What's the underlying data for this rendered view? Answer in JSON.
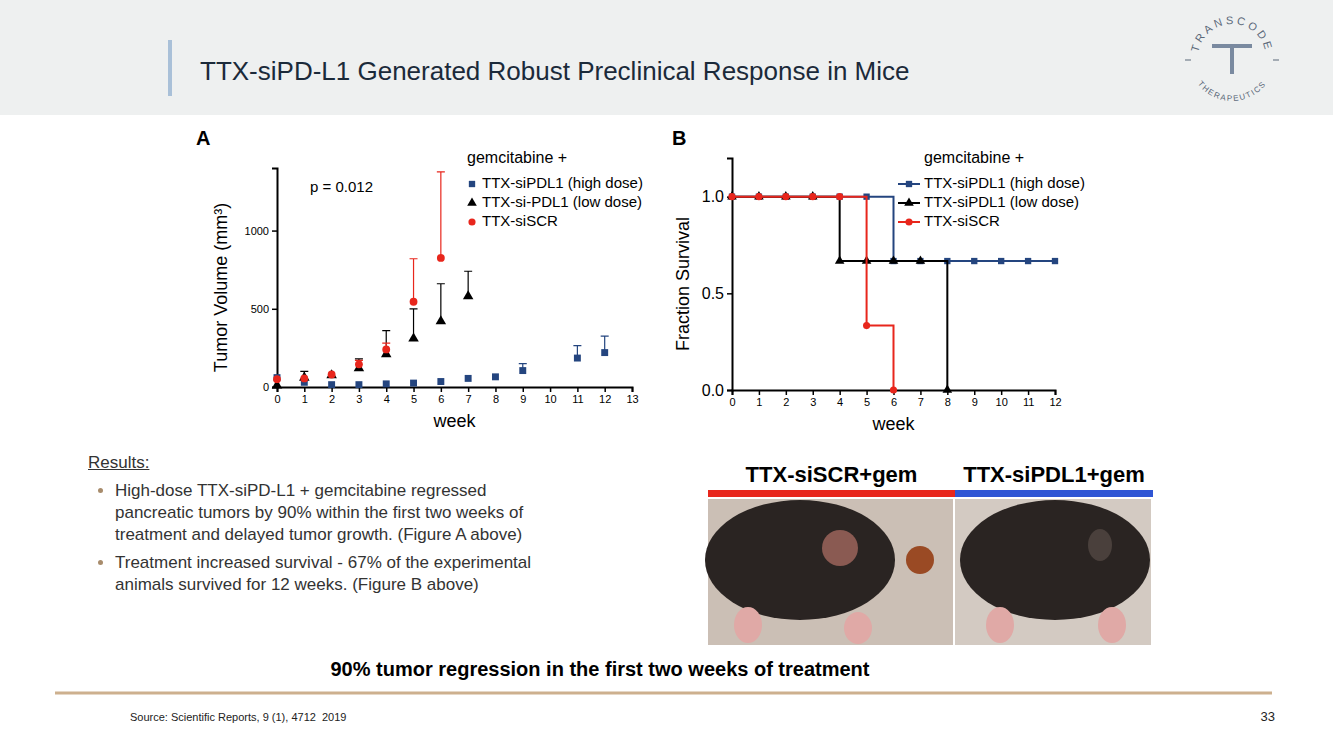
{
  "slide": {
    "title": "TTX-siPD-L1 Generated Robust Preclinical Response in Mice",
    "logo": {
      "top": "TRANSCODE",
      "bottom": "THERAPEUTICS"
    },
    "results_heading": "Results:",
    "bullets": [
      "High-dose TTX-siPD-L1 + gemcitabine regressed pancreatic tumors by 90% within the first two weeks of treatment and delayed tumor growth. (Figure A above)",
      "Treatment increased survival - 67% of the experimental animals survived for 12 weeks. (Figure B above)"
    ],
    "photo_labels": [
      {
        "text": "TTX-siSCR+gem",
        "color": "#e8261c"
      },
      {
        "text": "TTX-siPDL1+gem",
        "color": "#2f55d4"
      }
    ],
    "tagline": "90% tumor regression in the first two weeks of treatment",
    "source": "Source: Scientific Reports, 9 (1), 4712  2019",
    "page": 33
  },
  "chart_data": [
    {
      "type": "scatter",
      "panel": "A",
      "legend_title": "gemcitabine +",
      "annotations": [
        "p = 0.012"
      ],
      "x_label": "week",
      "y_label": "Tumor Volume (mm³)",
      "x": [
        0,
        1,
        2,
        3,
        4,
        5,
        6,
        7,
        8,
        9,
        10,
        11,
        12
      ],
      "xlim": [
        0,
        13
      ],
      "xticks": [
        0,
        1,
        2,
        3,
        4,
        5,
        6,
        7,
        8,
        9,
        10,
        11,
        12,
        13
      ],
      "ylim": [
        0,
        1400
      ],
      "yticks": [
        0,
        500,
        1000
      ],
      "legend": "top-right",
      "series": [
        {
          "name": "TTX-siPDL1 (high dose)",
          "color": "#24457f",
          "marker": "square",
          "values": [
            60,
            30,
            15,
            15,
            20,
            25,
            35,
            55,
            65,
            105,
            null,
            185,
            220
          ],
          "errors": [
            null,
            null,
            null,
            null,
            null,
            null,
            null,
            null,
            null,
            45,
            null,
            80,
            105
          ]
        },
        {
          "name": "TTX-si-PDL1 (low dose)",
          "color": "#000000",
          "marker": "triangle",
          "values": [
            10,
            60,
            75,
            120,
            210,
            310,
            420,
            580,
            null,
            null,
            null,
            null,
            null
          ],
          "errors": [
            null,
            40,
            null,
            60,
            150,
            190,
            240,
            160,
            null,
            null,
            null,
            null,
            null
          ]
        },
        {
          "name": "TTX-siSCR",
          "color": "#e8261c",
          "marker": "circle",
          "values": [
            50,
            55,
            80,
            145,
            240,
            545,
            825,
            null,
            null,
            null,
            null,
            null,
            null
          ],
          "errors": [
            null,
            null,
            null,
            25,
            40,
            275,
            550,
            null,
            null,
            null,
            null,
            null,
            null
          ]
        }
      ]
    },
    {
      "type": "line",
      "panel": "B",
      "legend_title": "gemcitabine +",
      "line_style": "step",
      "x_label": "week",
      "y_label": "Fraction Survival",
      "x": [
        0,
        1,
        2,
        3,
        4,
        5,
        6,
        7,
        8,
        9,
        10,
        11,
        12
      ],
      "xlim": [
        0,
        12
      ],
      "xticks": [
        0,
        1,
        2,
        3,
        4,
        5,
        6,
        7,
        8,
        9,
        10,
        11,
        12
      ],
      "ylim": [
        0,
        1.2
      ],
      "yticks": [
        {
          "value": 0,
          "label": "0.0"
        },
        {
          "value": 0.5,
          "label": "0.5"
        },
        {
          "value": 1,
          "label": "1.0"
        }
      ],
      "legend": "top-right",
      "series": [
        {
          "name": "TTX-siPDL1 (high dose)",
          "color": "#24457f",
          "marker": "square",
          "values": [
            1,
            1,
            1,
            1,
            1,
            1,
            0.667,
            0.667,
            0.667,
            0.667,
            0.667,
            0.667,
            0.667
          ]
        },
        {
          "name": "TTX-siPDL1 (low dose)",
          "color": "#000000",
          "marker": "triangle",
          "values": [
            1,
            1,
            1,
            1,
            0.667,
            0.667,
            0.667,
            0.667,
            0,
            null,
            null,
            null,
            null
          ]
        },
        {
          "name": "TTX-siSCR",
          "color": "#e8261c",
          "marker": "circle",
          "values": [
            1,
            1,
            1,
            1,
            1,
            0.333,
            0,
            null,
            null,
            null,
            null,
            null,
            null
          ]
        }
      ]
    }
  ]
}
